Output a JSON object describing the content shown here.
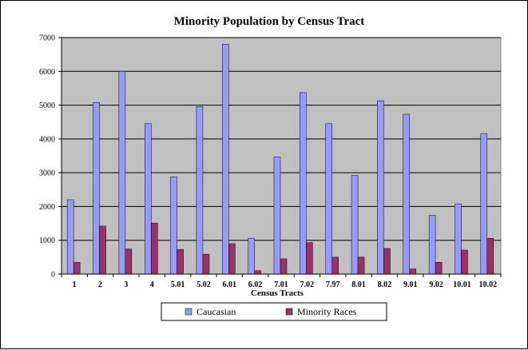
{
  "chart_data": {
    "type": "bar",
    "title": "Minority Population by Census Tract",
    "xlabel": "Census Tracts",
    "ylabel": "",
    "ylim": [
      0,
      7000
    ],
    "yticks": [
      0,
      1000,
      2000,
      3000,
      4000,
      5000,
      6000,
      7000
    ],
    "grid": true,
    "legend_position": "bottom",
    "plot_background": "#C0C0C0",
    "categories": [
      "1",
      "2",
      "3",
      "4",
      "5.01",
      "5.02",
      "6.01",
      "6.02",
      "7.01",
      "7.02",
      "7.97",
      "8.01",
      "8.02",
      "9.01",
      "9.02",
      "10.01",
      "10.02"
    ],
    "series": [
      {
        "name": "Caucasian",
        "color": "#9999FF",
        "values": [
          2200,
          5080,
          6000,
          4450,
          2880,
          4960,
          6800,
          1060,
          3470,
          5370,
          4450,
          2920,
          5130,
          4730,
          1740,
          2080,
          4160
        ]
      },
      {
        "name": "Minority Races",
        "color": "#993366",
        "values": [
          350,
          1420,
          740,
          1510,
          730,
          590,
          900,
          100,
          450,
          930,
          500,
          500,
          760,
          150,
          350,
          710,
          1060
        ]
      }
    ]
  }
}
